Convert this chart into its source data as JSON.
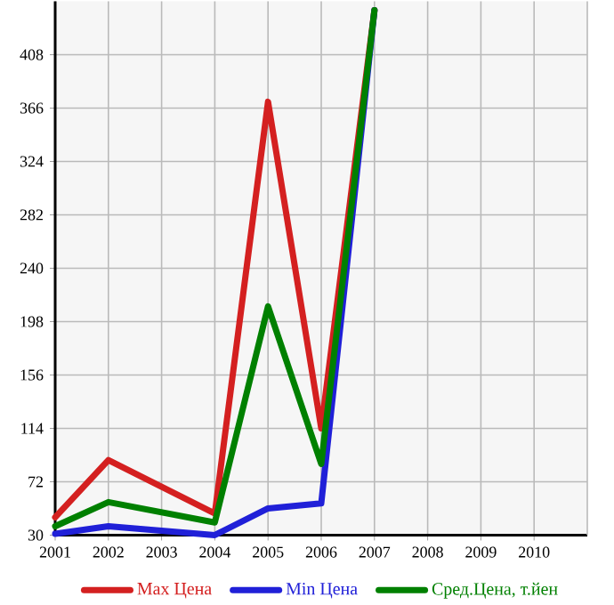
{
  "chart_data": {
    "type": "line",
    "categories": [
      "2001",
      "2002",
      "2003",
      "2004",
      "2005",
      "2006",
      "2007",
      "2008",
      "2009",
      "2010"
    ],
    "series": [
      {
        "name": "Max Цена",
        "color": "#d42020",
        "values": [
          44,
          89,
          null,
          47,
          371,
          114,
          443,
          null,
          null,
          null
        ]
      },
      {
        "name": "Min Цена",
        "color": "#2020d8",
        "values": [
          31,
          37,
          null,
          30,
          51,
          55,
          443,
          null,
          null,
          null
        ]
      },
      {
        "name": "Сред.Цена, т.йен",
        "color": "#008000",
        "values": [
          37,
          56,
          null,
          40,
          210,
          86,
          443,
          null,
          null,
          null
        ]
      }
    ],
    "ylim": [
      30,
      450
    ],
    "yticks": [
      30,
      72,
      114,
      156,
      198,
      240,
      282,
      324,
      366,
      408
    ],
    "grid": true,
    "legend": "bottom",
    "marker": "none",
    "line_style": "solid"
  }
}
